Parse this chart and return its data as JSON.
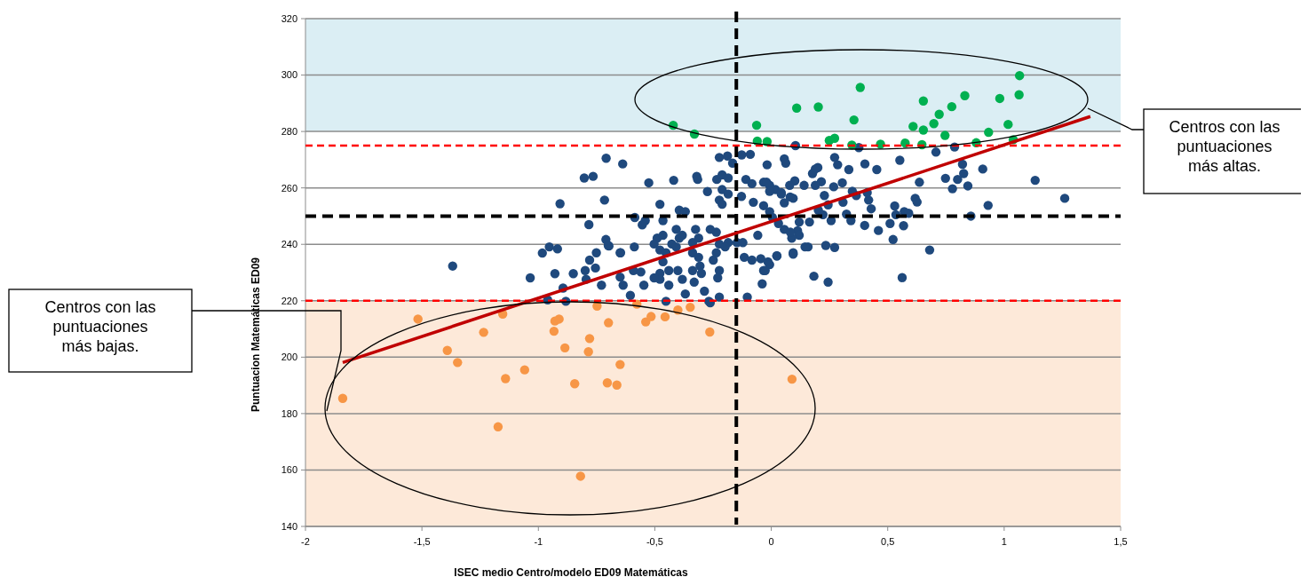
{
  "chart_data": {
    "type": "scatter",
    "xlabel": "ISEC medio Centro/modelo ED09 Matemáticas",
    "ylabel": "Puntuacion Matemáticas ED09",
    "xlim": [
      -2,
      1.5
    ],
    "xticks": [
      {
        "value": -2,
        "label": "-2"
      },
      {
        "value": -1.5,
        "label": "-1,5"
      },
      {
        "value": -1,
        "label": "-1"
      },
      {
        "value": -0.5,
        "label": "-0,5"
      },
      {
        "value": 0,
        "label": "0"
      },
      {
        "value": 0.5,
        "label": "0,5"
      },
      {
        "value": 1,
        "label": "1"
      },
      {
        "value": 1.5,
        "label": "1,5"
      }
    ],
    "ylim": [
      140,
      320
    ],
    "yticks": [
      140,
      160,
      180,
      200,
      220,
      240,
      260,
      280,
      300,
      320
    ],
    "grid": "y",
    "marker": "circle",
    "bands": [
      {
        "axis": "y",
        "from": 280,
        "to": 320,
        "color": "#dbeef4"
      },
      {
        "axis": "y",
        "from": 140,
        "to": 220,
        "color": "#fde9d9"
      }
    ],
    "ref_lines": [
      {
        "axis": "y",
        "value": 275,
        "color": "#ff0000",
        "line_style": "dashed"
      },
      {
        "axis": "y",
        "value": 220,
        "color": "#ff0000",
        "line_style": "dashed"
      },
      {
        "axis": "y",
        "value": 250,
        "color": "#000000",
        "line_style": "dashed"
      },
      {
        "axis": "x",
        "value": -0.15,
        "color": "#000000",
        "line_style": "dashed"
      }
    ],
    "annotations": [
      "Centros con las\npuntuaciones\nmás altas.",
      "Centros con las\npuntuaciones\nmás bajas."
    ],
    "series": [
      {
        "color": "#1f497d",
        "x": [
          -0.709,
          -0.638,
          -0.803,
          -0.765,
          -0.907,
          -0.716,
          -0.783,
          -0.71,
          -0.697,
          -1.368,
          -0.983,
          -0.953,
          -0.918,
          -1.035,
          -0.929,
          -0.85,
          -0.78,
          -0.751,
          -0.799,
          -0.795,
          -0.755,
          -0.729,
          -0.894,
          -0.96,
          -0.882,
          -0.649,
          -0.649,
          -0.526,
          -0.419,
          -0.32,
          -0.316,
          -0.274,
          -0.223,
          -0.188,
          -0.166,
          -0.127,
          -0.09,
          -0.018,
          0.056,
          0.062,
          -0.234,
          -0.211,
          -0.185,
          -0.211,
          -0.185,
          -0.223,
          -0.211,
          -0.128,
          -0.109,
          -0.083,
          -0.077,
          -0.033,
          -0.007,
          0.018,
          0.043,
          0.081,
          -0.033,
          -0.007,
          0.005,
          0.031,
          0.056,
          -0.058,
          0.094,
          0.024,
          -0.116,
          -0.083,
          -0.045,
          -0.014,
          -0.033,
          -0.039,
          -0.103,
          -0.185,
          -0.147,
          -0.122,
          -0.223,
          -0.198,
          -0.236,
          -0.262,
          -0.236,
          -0.249,
          -0.223,
          -0.23,
          -0.287,
          -0.331,
          -0.338,
          -0.306,
          -0.3,
          -0.338,
          -0.312,
          -0.325,
          -0.312,
          -0.338,
          -0.395,
          -0.369,
          -0.408,
          -0.395,
          -0.382,
          -0.465,
          -0.478,
          -0.541,
          -0.554,
          -0.49,
          -0.465,
          -0.503,
          -0.478,
          -0.452,
          -0.427,
          -0.408,
          -0.465,
          -0.44,
          -0.478,
          -0.401,
          -0.382,
          -0.44,
          -0.478,
          -0.503,
          -0.547,
          -0.592,
          -0.56,
          -0.636,
          -0.605,
          -0.588,
          -0.647,
          -0.7,
          -0.586,
          -0.369,
          -0.452,
          -0.268,
          -0.223,
          0.183,
          0.244,
          -0.262,
          0.104,
          0.376,
          0.272,
          0.285,
          0.333,
          0.402,
          0.453,
          0.552,
          0.707,
          0.787,
          0.821,
          0.826,
          0.908,
          0.748,
          0.8,
          0.778,
          0.844,
          0.931,
          0.857,
          1.133,
          1.26,
          0.636,
          0.618,
          0.626,
          0.53,
          0.535,
          0.571,
          0.59,
          0.568,
          0.51,
          0.523,
          0.46,
          0.401,
          0.68,
          0.562,
          0.429,
          0.418,
          0.412,
          0.365,
          0.348,
          0.305,
          0.308,
          0.323,
          0.342,
          0.257,
          0.244,
          0.268,
          0.189,
          0.2,
          0.177,
          0.215,
          0.189,
          0.228,
          0.202,
          0.222,
          0.164,
          0.12,
          0.141,
          0.101,
          0.079,
          0.094,
          0.056,
          0.043,
          -0.007,
          -0.02,
          0.113,
          0.12,
          0.088,
          0.082,
          0.158,
          0.145,
          0.234,
          0.272,
          0.094,
          0.024,
          -0.007,
          -0.026
        ],
        "values": [
          270.5,
          268.5,
          263.5,
          264.1,
          254.4,
          255.7,
          247,
          241.7,
          239.4,
          232.3,
          236.9,
          239.1,
          238.4,
          228.1,
          229.6,
          229.6,
          234.4,
          237,
          230.7,
          227.6,
          231.6,
          225.5,
          224.5,
          220.3,
          219.8,
          237,
          228.4,
          261.8,
          262.7,
          264.1,
          263,
          258.7,
          270.8,
          271.3,
          268.8,
          271.7,
          271.9,
          268.2,
          270.3,
          268.8,
          263,
          264.6,
          263.5,
          259.4,
          257.8,
          255.7,
          254.2,
          257,
          263,
          261.5,
          254.9,
          262,
          260.9,
          259.4,
          257.8,
          256.8,
          253.7,
          251.6,
          249.5,
          247.4,
          245.3,
          243.2,
          237,
          235.9,
          235.4,
          234.4,
          234.9,
          233.8,
          230.7,
          226,
          221.3,
          240.6,
          240.6,
          240.6,
          240.1,
          239.1,
          244.3,
          245.3,
          237,
          234.4,
          230.7,
          228.1,
          223.4,
          226.6,
          230.7,
          232.3,
          229.7,
          237,
          235.4,
          245.3,
          242.2,
          240.6,
          252.1,
          251.6,
          245.3,
          242.2,
          243.2,
          248.4,
          254.2,
          248.4,
          246.9,
          242.2,
          243.2,
          240.1,
          238,
          237,
          240.1,
          239.1,
          233.8,
          230.7,
          229.7,
          230.7,
          227.6,
          225.5,
          227.6,
          228.1,
          225.5,
          230.7,
          230.2,
          225.5,
          221.9,
          239.1,
          237,
          239.6,
          249.5,
          222.4,
          219.8,
          219.8,
          221.3,
          228.7,
          226.6,
          219.3,
          275,
          274.3,
          270.8,
          268.2,
          266.5,
          268.5,
          266.5,
          269.8,
          272.7,
          274.5,
          268.4,
          265.1,
          266.7,
          263.4,
          263,
          259.7,
          260.7,
          253.8,
          250,
          262.7,
          256.3,
          262,
          256.3,
          255,
          253.6,
          250.5,
          251.6,
          251,
          246.6,
          247.4,
          241.7,
          244.9,
          246.7,
          238,
          228.2,
          252.6,
          255.7,
          258.3,
          257.3,
          258.8,
          261.8,
          254.9,
          250.7,
          248.4,
          248.4,
          254,
          260.4,
          266.7,
          267.2,
          265.1,
          262.2,
          260.9,
          257.3,
          252.1,
          250.5,
          247.9,
          247.9,
          260.9,
          262.5,
          260.9,
          256.3,
          254.7,
          258.3,
          258.8,
          262,
          244.8,
          243.2,
          242.2,
          244.3,
          239.1,
          239.1,
          239.6,
          238.9,
          236.5,
          235.9,
          232.8,
          230.7
        ]
      },
      {
        "color": "#f79646",
        "x": [
          -1.517,
          -1.153,
          -1.235,
          -1.391,
          -1.347,
          -1.059,
          -1.141,
          -1.84,
          -1.173,
          -0.819,
          -0.929,
          -0.911,
          -0.933,
          -0.886,
          -0.78,
          -0.785,
          -0.748,
          -0.699,
          -0.649,
          -0.844,
          -0.704,
          -0.663,
          -0.577,
          -0.539,
          -0.516,
          -0.456,
          -0.401,
          -0.348,
          -0.264,
          0.089
        ],
        "values": [
          213.5,
          215.3,
          208.8,
          202.4,
          198.1,
          195.5,
          192.4,
          185.4,
          175.3,
          157.8,
          212.8,
          213.5,
          209.2,
          203.3,
          206.6,
          201.9,
          218.1,
          212.2,
          197.4,
          190.6,
          190.9,
          190.1,
          218.8,
          212.5,
          214.4,
          214.3,
          216.7,
          217.7,
          208.9,
          192.2
        ]
      },
      {
        "color": "#00b050",
        "x": [
          -0.018,
          0.109,
          0.202,
          0.382,
          0.355,
          0.249,
          0.272,
          0.346,
          0.469,
          0.575,
          0.647,
          0.609,
          0.653,
          0.653,
          0.698,
          0.721,
          0.746,
          0.775,
          0.831,
          0.88,
          0.933,
          0.981,
          1.017,
          1.039,
          1.064,
          1.066,
          -0.421,
          -0.33,
          -0.063,
          -0.06
        ],
        "values": [
          276.4,
          288.3,
          288.7,
          295.6,
          284.1,
          276.8,
          277.6,
          275.2,
          275.5,
          275.9,
          275.3,
          281.8,
          280.5,
          290.8,
          282.8,
          286.1,
          278.6,
          288.8,
          292.7,
          276,
          279.7,
          291.7,
          282.5,
          277.1,
          293,
          299.8,
          282.2,
          279.1,
          282.2,
          276.6
        ]
      },
      {
        "type": "line",
        "marker": "none",
        "color": "#c00000",
        "x": [
          -1.84,
          1.37
        ],
        "values": [
          198.1,
          285.3
        ]
      }
    ]
  }
}
